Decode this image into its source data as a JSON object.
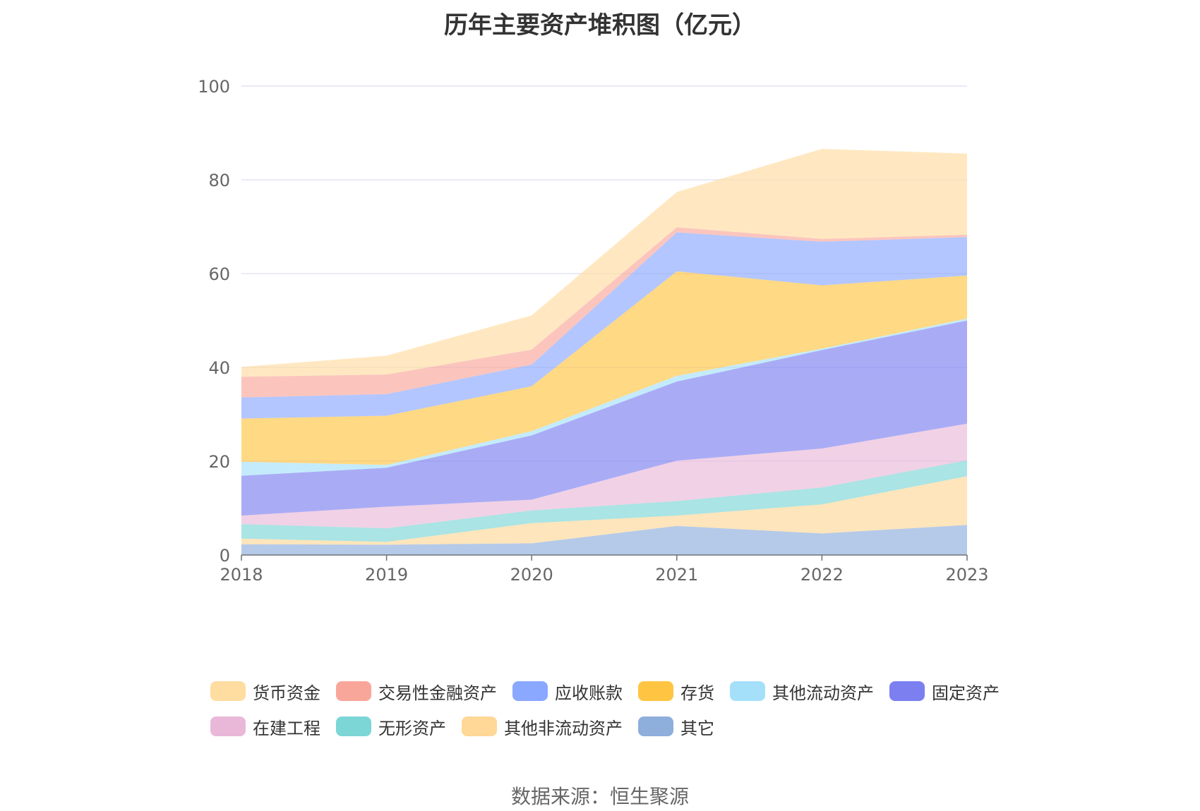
{
  "title": "历年主要资产堆积图（亿元）",
  "source": "数据来源：恒生聚源",
  "chart_data": {
    "type": "area",
    "stacked": true,
    "title": "历年主要资产堆积图（亿元）",
    "x": [
      "2018",
      "2019",
      "2020",
      "2021",
      "2022",
      "2023"
    ],
    "ylim": [
      0,
      100
    ],
    "yticks": [
      0,
      20,
      40,
      60,
      80,
      100
    ],
    "grid": true,
    "legend_position": "bottom",
    "series": [
      {
        "name": "其它",
        "color": "#8eaedb",
        "values": [
          2.3,
          2.2,
          2.5,
          6.2,
          4.6,
          6.4
        ]
      },
      {
        "name": "其他非流动资产",
        "color": "#ffd797",
        "values": [
          1.2,
          0.6,
          4.3,
          2.2,
          6.2,
          10.4
        ]
      },
      {
        "name": "无形资产",
        "color": "#7dd6d6",
        "values": [
          3.1,
          2.9,
          2.7,
          3.1,
          3.6,
          3.4
        ]
      },
      {
        "name": "在建工程",
        "color": "#e9b8d9",
        "values": [
          1.8,
          4.6,
          2.3,
          8.6,
          8.3,
          7.8
        ]
      },
      {
        "name": "固定资产",
        "color": "#7b7ff0",
        "values": [
          8.5,
          8.3,
          13.7,
          16.9,
          21.0,
          22.0
        ]
      },
      {
        "name": "其他流动资产",
        "color": "#a5e0fb",
        "values": [
          3.0,
          0.6,
          0.9,
          1.2,
          0.3,
          0.4
        ]
      },
      {
        "name": "存货",
        "color": "#ffc542",
        "values": [
          9.2,
          10.5,
          9.6,
          22.3,
          13.5,
          9.2
        ]
      },
      {
        "name": "应收账款",
        "color": "#8aa8ff",
        "values": [
          4.5,
          4.6,
          4.6,
          8.3,
          9.3,
          8.2
        ]
      },
      {
        "name": "交易性金融资产",
        "color": "#f9a69a",
        "values": [
          4.4,
          4.2,
          3.2,
          1.1,
          0.6,
          0.5
        ]
      },
      {
        "name": "货币资金",
        "color": "#ffdca0",
        "values": [
          2.1,
          4.0,
          7.3,
          7.5,
          19.2,
          17.3
        ]
      }
    ]
  },
  "legend": [
    {
      "name": "货币资金",
      "color": "#ffdca0"
    },
    {
      "name": "交易性金融资产",
      "color": "#f9a69a"
    },
    {
      "name": "应收账款",
      "color": "#8aa8ff"
    },
    {
      "name": "存货",
      "color": "#ffc542"
    },
    {
      "name": "其他流动资产",
      "color": "#a5e0fb"
    },
    {
      "name": "固定资产",
      "color": "#7b7ff0"
    },
    {
      "name": "在建工程",
      "color": "#e9b8d9"
    },
    {
      "name": "无形资产",
      "color": "#7dd6d6"
    },
    {
      "name": "其他非流动资产",
      "color": "#ffd797"
    },
    {
      "name": "其它",
      "color": "#8eaedb"
    }
  ]
}
